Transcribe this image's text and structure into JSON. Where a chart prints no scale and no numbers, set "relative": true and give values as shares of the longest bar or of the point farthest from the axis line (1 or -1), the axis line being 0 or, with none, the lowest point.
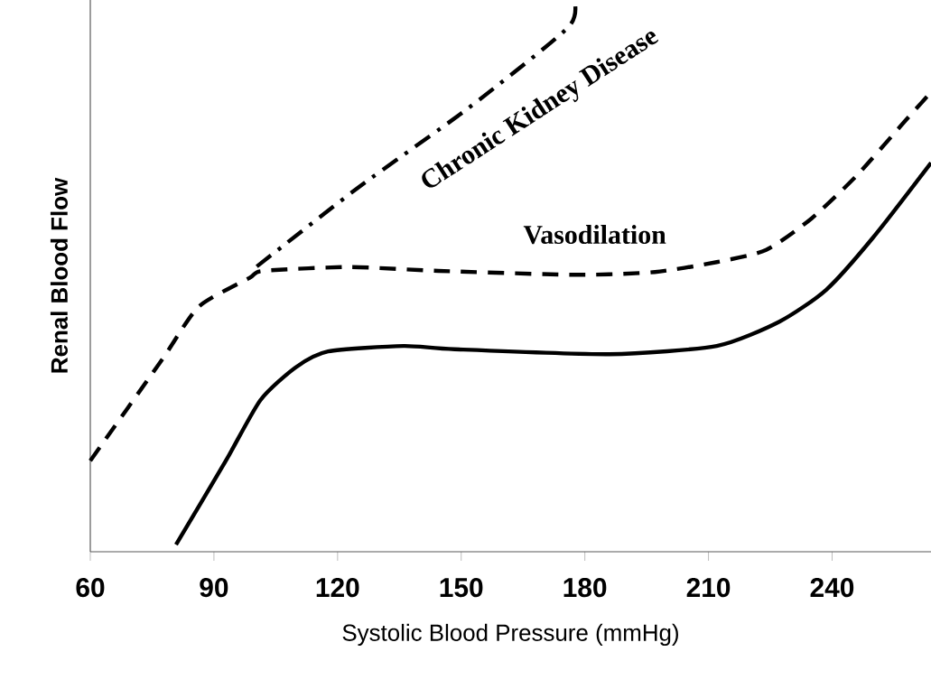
{
  "chart_data": {
    "type": "line",
    "relative": true,
    "xlabel": "Systolic Blood Pressure (mmHg)",
    "ylabel": "Renal Blood Flow",
    "xlim": [
      60,
      264
    ],
    "xticks": [
      60,
      90,
      120,
      150,
      180,
      210,
      240
    ],
    "series": [
      {
        "color": "#000000",
        "line_style": "solid",
        "x": [
          80.8,
          92.9,
          101.3,
          109.8,
          117.7,
          136,
          148.4,
          186,
          212,
          227.2,
          238.6,
          250,
          264
        ],
        "values": [
          0.013,
          0.165,
          0.275,
          0.334,
          0.363,
          0.373,
          0.367,
          0.358,
          0.373,
          0.417,
          0.475,
          0.57,
          0.705
        ]
      },
      {
        "name": "Vasodilation",
        "color": "#000000",
        "line_style": "dashed",
        "x": [
          60,
          77.3,
          86.3,
          98.6,
          102,
          122.8,
          144.5,
          178,
          197,
          212,
          224,
          235,
          246,
          257.5,
          264
        ],
        "values": [
          0.165,
          0.347,
          0.444,
          0.496,
          0.509,
          0.516,
          0.509,
          0.502,
          0.507,
          0.525,
          0.547,
          0.604,
          0.682,
          0.779,
          0.833
        ]
      },
      {
        "name": "Chronic Kidney Disease",
        "color": "#000000",
        "line_style": "dashdot",
        "x": [
          100.4,
          125,
          151.9,
          175.9,
          177.4
        ],
        "values": [
          0.517,
          0.66,
          0.805,
          0.95,
          1
        ]
      }
    ]
  }
}
